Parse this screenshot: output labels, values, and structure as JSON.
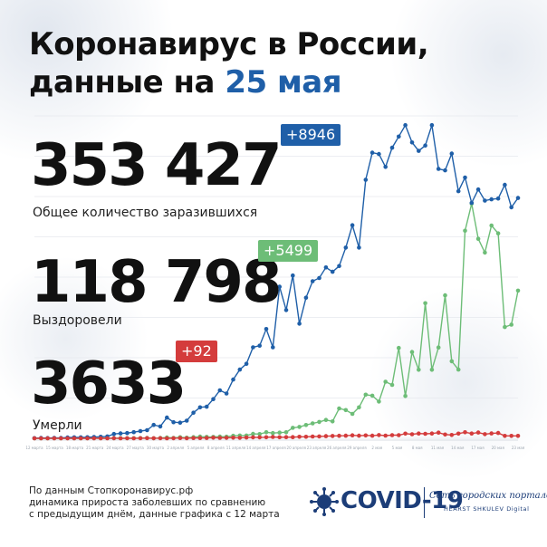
{
  "header": {
    "title_line1": "Коронавирус в России,",
    "title_line2_prefix": "данные на ",
    "title_line2_date": "25 мая"
  },
  "stats": {
    "total": {
      "value": "353 427",
      "delta": "+8946",
      "label": "Общее количество заразившихся"
    },
    "recovered": {
      "value": "118 798",
      "delta": "+5499",
      "label": "Выздоровели"
    },
    "deaths": {
      "value": "3633",
      "delta": "+92",
      "label": "Умерли"
    }
  },
  "footer": {
    "line1": "По данным Стопкоронавирус.рф",
    "line2": "динамика прироста заболевших по сравнению",
    "line3": "с предыдущим днём, данные графика с 12 марта"
  },
  "logo": {
    "covid_text": "COVID-19",
    "portals_text": "Сеть городских порталов",
    "hearst_text": "HEARST SHKULEV Digital"
  },
  "colors": {
    "cases": "#1f5fa8",
    "recovered": "#6dbd77",
    "deaths": "#d43c3c",
    "title_accent": "#1f5fa8"
  },
  "chart_data": {
    "type": "line",
    "title": "",
    "xlabel": "",
    "ylabel": "",
    "x_start": "12 марта",
    "x_end": "25 мая",
    "grid": true,
    "x_ticks": [
      "12 марта",
      "15 марта",
      "18 марта",
      "21 марта",
      "24 марта",
      "27 марта",
      "30 марта",
      "2 апреля",
      "5 апреля",
      "8 апреля",
      "11 апреля",
      "14 апреля",
      "17 апреля",
      "20 апреля",
      "23 апреля",
      "26 апреля",
      "29 апреля",
      "2 мая",
      "5 мая",
      "8 мая",
      "11 мая",
      "14 мая",
      "17 мая",
      "20 мая",
      "23 мая"
    ],
    "series": [
      {
        "key": "new_cases",
        "values": [
          6,
          14,
          11,
          18,
          14,
          30,
          36,
          37,
          40,
          52,
          57,
          71,
          163,
          182,
          196,
          228,
          270,
          302,
          500,
          440,
          771,
          601,
          582,
          658,
          954,
          1154,
          1175,
          1459,
          1786,
          1667,
          2186,
          2558,
          2774,
          3388,
          3448,
          4070,
          3388,
          5642,
          4774,
          6060,
          4268,
          5236,
          5849,
          5966,
          6361,
          6198,
          6411,
          7099,
          7933,
          7099,
          9623,
          10633,
          10581,
          10102,
          10817,
          11231,
          11656,
          11012,
          10699,
          10899,
          11656,
          10028,
          9974,
          10598,
          9200,
          9709,
          8764,
          9263,
          8849,
          8894,
          8926,
          9434,
          8599,
          8946
        ],
        "ylim": [
          0,
          12000
        ]
      },
      {
        "key": "new_recovered",
        "values": [
          0,
          0,
          0,
          2,
          1,
          3,
          1,
          1,
          2,
          3,
          5,
          8,
          4,
          6,
          4,
          6,
          9,
          13,
          3,
          15,
          29,
          17,
          39,
          23,
          45,
          64,
          55,
          53,
          63,
          61,
          96,
          105,
          105,
          165,
          158,
          226,
          194,
          211,
          225,
          390,
          425,
          495,
          555,
          609,
          685,
          631,
          1113,
          1053,
          911,
          1152,
          1626,
          1586,
          1370,
          2108,
          1989,
          3363,
          1574,
          3213,
          2552,
          5028,
          2551,
          3381,
          5322,
          2868,
          2559,
          7726,
          8735,
          7425,
          6913,
          7923,
          7629,
          4143,
          4230,
          5499
        ],
        "ylim": [
          0,
          12000
        ]
      },
      {
        "key": "new_deaths",
        "values": [
          0,
          0,
          0,
          0,
          0,
          1,
          0,
          0,
          0,
          0,
          0,
          1,
          2,
          0,
          2,
          1,
          5,
          6,
          3,
          4,
          0,
          5,
          9,
          5,
          10,
          11,
          13,
          22,
          17,
          19,
          22,
          20,
          29,
          36,
          36,
          40,
          51,
          42,
          45,
          44,
          57,
          57,
          66,
          72,
          80,
          86,
          96,
          99,
          111,
          99,
          108,
          98,
          121,
          101,
          117,
          118,
          174,
          153,
          178,
          168,
          177,
          212,
          143,
          126,
          176,
          225,
          177,
          215,
          154,
          181,
          200,
          91,
          92,
          92
        ],
        "ylim": [
          0,
          12000
        ]
      }
    ]
  }
}
